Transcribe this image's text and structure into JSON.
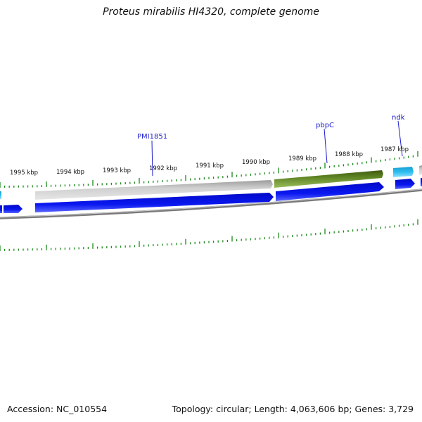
{
  "title": "Proteus mirabilis HI4320, complete genome",
  "footer": {
    "accession": "Accession: NC_010554",
    "summary": "Topology: circular; Length: 4,063,606 bp; Genes: 3,729"
  },
  "genome_map": {
    "kbp_labels": [
      "1995 kbp",
      "1994 kbp",
      "1993 kbp",
      "1992 kbp",
      "1991 kbp",
      "1990 kbp",
      "1989 kbp",
      "1988 kbp",
      "1987 kbp"
    ],
    "gene_labels": [
      "PMI1851",
      "pbpC",
      "ndk"
    ],
    "colors": {
      "cds_grey": "#b8b8b8",
      "pbpC": "#5a7a1e",
      "ndk": "#22b5e8",
      "genes_blue": "#0a14e8",
      "backbone": "#7a7a7a",
      "ticks": "#1c8a1c",
      "gene_label": "#1a1acc"
    }
  }
}
